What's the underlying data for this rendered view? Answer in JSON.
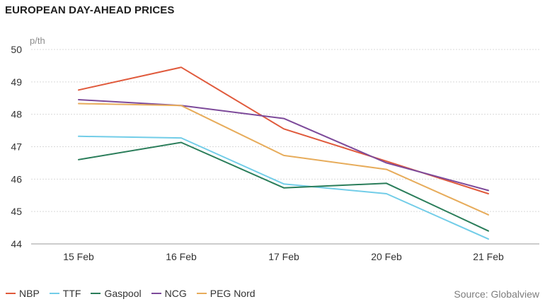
{
  "chart_data": {
    "type": "line",
    "title": "EUROPEAN DAY-AHEAD PRICES",
    "ylabel": "p/th",
    "xlabel": "",
    "categories": [
      "15 Feb",
      "16 Feb",
      "17 Feb",
      "20 Feb",
      "21 Feb"
    ],
    "ylim": [
      44,
      50
    ],
    "yticks": [
      44,
      45,
      46,
      47,
      48,
      49,
      50
    ],
    "grid": true,
    "legend_position": "bottom-left",
    "source": "Source: Globalview",
    "series": [
      {
        "name": "NBP",
        "color": "#e05a3c",
        "values": [
          48.75,
          49.45,
          47.55,
          46.55,
          45.55
        ]
      },
      {
        "name": "TTF",
        "color": "#72cde8",
        "values": [
          47.32,
          47.27,
          45.85,
          45.55,
          44.15
        ]
      },
      {
        "name": "Gaspool",
        "color": "#2a7d5a",
        "values": [
          46.6,
          47.13,
          45.73,
          45.87,
          44.4
        ]
      },
      {
        "name": "NCG",
        "color": "#7d4a9a",
        "values": [
          48.45,
          48.27,
          47.87,
          46.5,
          45.65
        ]
      },
      {
        "name": "PEG Nord",
        "color": "#e7ac5b",
        "values": [
          48.33,
          48.27,
          46.73,
          46.3,
          44.9
        ]
      }
    ]
  }
}
